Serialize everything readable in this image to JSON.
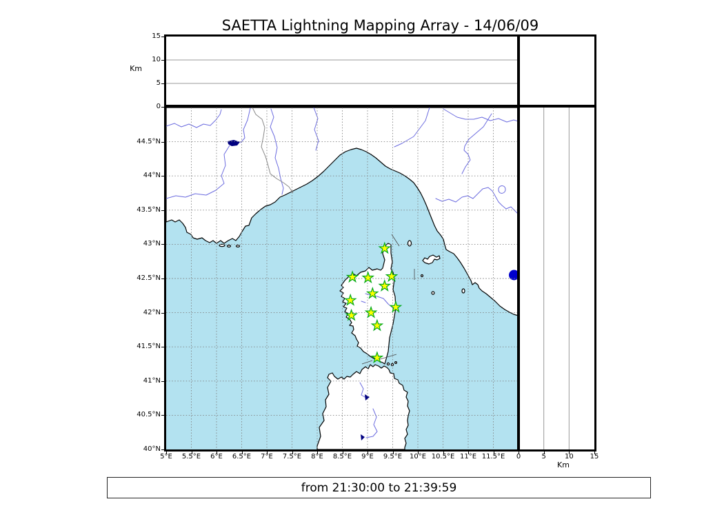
{
  "title": "SAETTA Lightning Mapping Array - 14/06/09",
  "caption": "from 21:30:00 to 21:39:59",
  "colors": {
    "sea": "#b3e2f0",
    "land": "#ffffff",
    "coast": "#000000",
    "river": "#6b6bdf",
    "admin_border": "#888888",
    "grid": "#808080",
    "lake": "#000080",
    "lake_circle": "#0000cc",
    "station_fill": "#ffff00",
    "station_stroke": "#00a818"
  },
  "axes": {
    "altitude_label": "Km",
    "altitude_ticks": [
      {
        "label": "0",
        "value": 0
      },
      {
        "label": "5",
        "value": 5
      },
      {
        "label": "10",
        "value": 10
      },
      {
        "label": "15",
        "value": 15
      }
    ],
    "longitude_ticks": [
      {
        "label": "5°E",
        "value": 5
      },
      {
        "label": "5.5°E",
        "value": 5.5
      },
      {
        "label": "6°E",
        "value": 6
      },
      {
        "label": "6.5°E",
        "value": 6.5
      },
      {
        "label": "7°E",
        "value": 7
      },
      {
        "label": "7.5°E",
        "value": 7.5
      },
      {
        "label": "8°E",
        "value": 8
      },
      {
        "label": "8.5°E",
        "value": 8.5
      },
      {
        "label": "9°E",
        "value": 9
      },
      {
        "label": "9.5°E",
        "value": 9.5
      },
      {
        "label": "10°E",
        "value": 10
      },
      {
        "label": "10.5°E",
        "value": 10.5
      },
      {
        "label": "11°E",
        "value": 11
      },
      {
        "label": "11.5°E",
        "value": 11.5
      }
    ],
    "latitude_ticks": [
      {
        "label": "40°N",
        "value": 40
      },
      {
        "label": "40.5°N",
        "value": 40.5
      },
      {
        "label": "41°N",
        "value": 41
      },
      {
        "label": "41.5°N",
        "value": 41.5
      },
      {
        "label": "42°N",
        "value": 42
      },
      {
        "label": "42.5°N",
        "value": 42.5
      },
      {
        "label": "43°N",
        "value": 43
      },
      {
        "label": "43.5°N",
        "value": 43.5
      },
      {
        "label": "44°N",
        "value": 44
      },
      {
        "label": "44.5°N",
        "value": 44.5
      }
    ],
    "longitude_gridlines": [
      5.5,
      6,
      6.5,
      7,
      7.5,
      8,
      8.5,
      9,
      9.5,
      10,
      10.5,
      11,
      11.5
    ],
    "latitude_gridlines": [
      40.5,
      41,
      41.5,
      42,
      42.5,
      43,
      43.5,
      44,
      44.5
    ]
  },
  "chart_data": {
    "type": "scatter",
    "title": "SAETTA Lightning Mapping Array - 14/06/09",
    "time_range": {
      "from": "21:30:00",
      "to": "21:39:59"
    },
    "map_panel": {
      "lon_range": [
        5,
        12
      ],
      "lat_range": [
        40,
        45
      ],
      "grid_step_deg": 0.5,
      "grid_style": "dashed"
    },
    "top_panel": {
      "x": "longitude",
      "y_label": "Km",
      "y_range": [
        0,
        15
      ],
      "gridlines_km": [
        5,
        10
      ],
      "points": []
    },
    "right_panel": {
      "x_label": "Km",
      "x_range": [
        0,
        15
      ],
      "y": "latitude",
      "gridlines_km": [
        5,
        10
      ],
      "points": []
    },
    "lightning_sources": [],
    "stations": [
      {
        "lon": 9.34,
        "lat": 42.94
      },
      {
        "lon": 8.7,
        "lat": 42.52
      },
      {
        "lon": 9.01,
        "lat": 42.51
      },
      {
        "lon": 9.48,
        "lat": 42.53
      },
      {
        "lon": 9.34,
        "lat": 42.39
      },
      {
        "lon": 9.1,
        "lat": 42.28
      },
      {
        "lon": 8.66,
        "lat": 42.18
      },
      {
        "lon": 8.68,
        "lat": 41.96
      },
      {
        "lon": 9.07,
        "lat": 42.0
      },
      {
        "lon": 9.56,
        "lat": 42.08
      },
      {
        "lon": 9.19,
        "lat": 41.81
      },
      {
        "lon": 9.19,
        "lat": 41.34
      }
    ]
  }
}
